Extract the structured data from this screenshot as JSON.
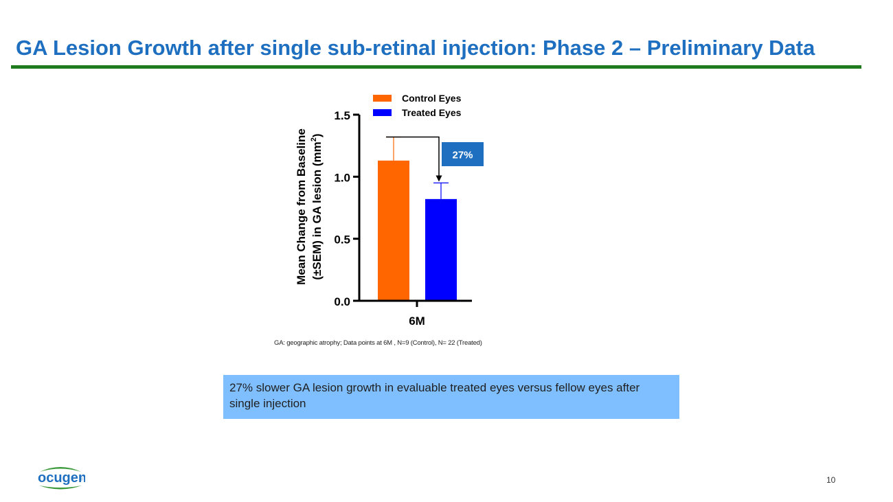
{
  "slide": {
    "title": "GA Lesion Growth after single sub-retinal injection: Phase 2 – Preliminary Data",
    "footnote": "GA: geographic atrophy; Data points at 6M , N=9 (Control), N= 22 (Treated)",
    "callout": "27% slower GA lesion growth in evaluable treated eyes versus fellow eyes after single injection",
    "page_number": "10",
    "logo_text": "ocugen",
    "logo_mark": "®"
  },
  "colors": {
    "title": "#1f6fc0",
    "rule": "#1e7b1e",
    "control": "#ff6600",
    "treated": "#0000ff",
    "badge": "#1f6fc0",
    "callout_bg": "#7fbfff",
    "logo_text": "#1f6fc0",
    "logo_swoosh": "#3c9a3c"
  },
  "chart_data": {
    "type": "bar",
    "categories": [
      "6M"
    ],
    "series": [
      {
        "name": "Control Eyes",
        "values": [
          1.13
        ],
        "sem": [
          0.19
        ],
        "color": "#ff6600"
      },
      {
        "name": "Treated Eyes",
        "values": [
          0.82
        ],
        "sem": [
          0.13
        ],
        "color": "#0000ff"
      }
    ],
    "ylabel_line1": "Mean Change from Baseline",
    "ylabel_line2": "(±SEM) in GA lesion (mm",
    "ylabel_sup": "2",
    "ylabel_close": ")",
    "ylim": [
      0,
      1.5
    ],
    "yticks": [
      0,
      0.5,
      1.0,
      1.5
    ],
    "ytick_labels": [
      "0.0",
      "0.5",
      "1.0",
      "1.5"
    ],
    "annotation": "27%",
    "legend_position": "top"
  }
}
